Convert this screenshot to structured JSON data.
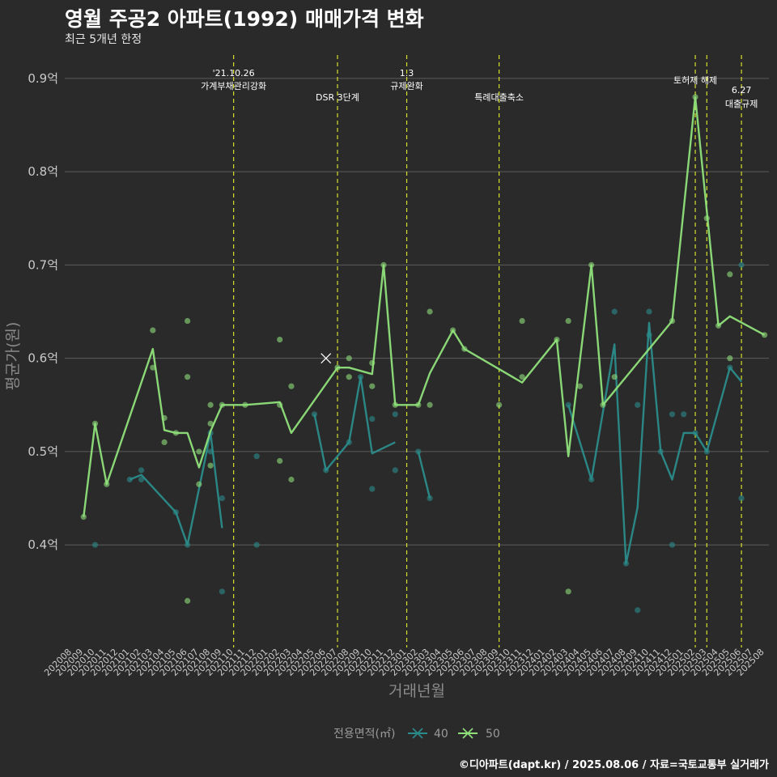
{
  "header": {
    "title": "영월 주공2 아파트(1992) 매매가격 변화",
    "subtitle": "최근 5개년 한정",
    "caption": "©디아파트(dapt.kr) / 2025.08.06 / 자료=국토교통부 실거래가"
  },
  "colors": {
    "background": "#2b2a2b",
    "grid": "#5c5c5c",
    "vline": "#d4e02b",
    "s40": "#2a8c8a",
    "s50": "#8fe07a"
  },
  "chart_data": {
    "type": "line",
    "title": "영월 주공2 아파트(1992) 매매가격 변화",
    "subtitle": "최근 5개년 한정",
    "xlabel": "거래년월",
    "ylabel": "평균가(원)",
    "ylim": [
      0.29,
      0.925
    ],
    "yticks": [
      0.4,
      0.5,
      0.6,
      0.7,
      0.8,
      0.9
    ],
    "ytick_labels": [
      "0.4억",
      "0.5억",
      "0.6억",
      "0.7억",
      "0.8억",
      "0.9억"
    ],
    "grid": true,
    "legend": {
      "title": "전용면적(㎡)",
      "position": "bottom",
      "entries": [
        "40",
        "50"
      ]
    },
    "x_ticks": [
      "202008",
      "202009",
      "202010",
      "202011",
      "202012",
      "202101",
      "202102",
      "202103",
      "202104",
      "202105",
      "202106",
      "202107",
      "202108",
      "202109",
      "202110",
      "202111",
      "202112",
      "202201",
      "202202",
      "202203",
      "202204",
      "202205",
      "202206",
      "202207",
      "202208",
      "202209",
      "202210",
      "202211",
      "202212",
      "202301",
      "202302",
      "202303",
      "202304",
      "202305",
      "202306",
      "202307",
      "202308",
      "202309",
      "202310",
      "202311",
      "202312",
      "202401",
      "202402",
      "202403",
      "202404",
      "202405",
      "202406",
      "202407",
      "202408",
      "202409",
      "202410",
      "202411",
      "202412",
      "202501",
      "202502",
      "202503",
      "202504",
      "202505",
      "202506",
      "202507",
      "202508"
    ],
    "series": [
      {
        "name": "40",
        "line_segments": [
          [
            [
              "202101",
              0.47
            ],
            [
              "202102",
              0.475
            ],
            [
              "202105",
              0.435
            ],
            [
              "202106",
              0.4
            ],
            [
              "202108",
              0.52
            ],
            [
              "202109",
              0.418
            ]
          ],
          [
            [
              "202205",
              0.54
            ],
            [
              "202206",
              0.48
            ],
            [
              "202208",
              0.51
            ],
            [
              "202209",
              0.58
            ],
            [
              "202210",
              0.498
            ],
            [
              "202212",
              0.51
            ]
          ],
          [
            [
              "202302",
              0.5
            ],
            [
              "202303",
              0.45
            ]
          ],
          [
            [
              "202403",
              0.55
            ],
            [
              "202405",
              0.47
            ],
            [
              "202407",
              0.615
            ],
            [
              "202408",
              0.38
            ],
            [
              "202409",
              0.44
            ],
            [
              "202410",
              0.638
            ],
            [
              "202411",
              0.5
            ],
            [
              "202412",
              0.47
            ],
            [
              "202501",
              0.52
            ],
            [
              "202502",
              0.52
            ],
            [
              "202503",
              0.5
            ],
            [
              "202505",
              0.59
            ],
            [
              "202506",
              0.575
            ]
          ]
        ],
        "points": [
          [
            "202010",
            0.4
          ],
          [
            "202101",
            0.47
          ],
          [
            "202102",
            0.48
          ],
          [
            "202102",
            0.47
          ],
          [
            "202105",
            0.435
          ],
          [
            "202106",
            0.4
          ],
          [
            "202108",
            0.5
          ],
          [
            "202108",
            0.52
          ],
          [
            "202109",
            0.45
          ],
          [
            "202109",
            0.35
          ],
          [
            "202112",
            0.495
          ],
          [
            "202112",
            0.4
          ],
          [
            "202205",
            0.54
          ],
          [
            "202206",
            0.48
          ],
          [
            "202208",
            0.51
          ],
          [
            "202209",
            0.58
          ],
          [
            "202210",
            0.535
          ],
          [
            "202210",
            0.46
          ],
          [
            "202212",
            0.54
          ],
          [
            "202212",
            0.48
          ],
          [
            "202302",
            0.5
          ],
          [
            "202303",
            0.45
          ],
          [
            "202403",
            0.55
          ],
          [
            "202405",
            0.47
          ],
          [
            "202407",
            0.65
          ],
          [
            "202408",
            0.38
          ],
          [
            "202409",
            0.33
          ],
          [
            "202409",
            0.55
          ],
          [
            "202410",
            0.65
          ],
          [
            "202410",
            0.625
          ],
          [
            "202411",
            0.5
          ],
          [
            "202412",
            0.4
          ],
          [
            "202412",
            0.54
          ],
          [
            "202501",
            0.54
          ],
          [
            "202502",
            0.52
          ],
          [
            "202503",
            0.5
          ],
          [
            "202505",
            0.59
          ],
          [
            "202506",
            0.7
          ],
          [
            "202506",
            0.45
          ]
        ]
      },
      {
        "name": "50",
        "line_segments": [
          [
            [
              "202009",
              0.43
            ],
            [
              "202010",
              0.53
            ],
            [
              "202011",
              0.465
            ],
            [
              "202103",
              0.61
            ],
            [
              "202104",
              0.523
            ],
            [
              "202105",
              0.52
            ],
            [
              "202106",
              0.52
            ],
            [
              "202107",
              0.483
            ],
            [
              "202108",
              0.522
            ],
            [
              "202109",
              0.55
            ],
            [
              "202110",
              0.55
            ],
            [
              "202111",
              0.55
            ],
            [
              "202202",
              0.553
            ],
            [
              "202203",
              0.52
            ],
            [
              "202207",
              0.59
            ],
            [
              "202208",
              0.59
            ],
            [
              "202210",
              0.583
            ],
            [
              "202211",
              0.7
            ],
            [
              "202212",
              0.55
            ],
            [
              "202302",
              0.55
            ],
            [
              "202303",
              0.584
            ],
            [
              "202305",
              0.63
            ],
            [
              "202306",
              0.61
            ],
            [
              "202311",
              0.574
            ],
            [
              "202402",
              0.62
            ],
            [
              "202403",
              0.495
            ],
            [
              "202405",
              0.7
            ],
            [
              "202406",
              0.55
            ],
            [
              "202412",
              0.64
            ],
            [
              "202502",
              0.88
            ],
            [
              "202504",
              0.635
            ],
            [
              "202505",
              0.645
            ],
            [
              "202508",
              0.625
            ]
          ]
        ],
        "points": [
          [
            "202009",
            0.43
          ],
          [
            "202010",
            0.53
          ],
          [
            "202011",
            0.465
          ],
          [
            "202103",
            0.63
          ],
          [
            "202103",
            0.59
          ],
          [
            "202104",
            0.536
          ],
          [
            "202104",
            0.51
          ],
          [
            "202105",
            0.52
          ],
          [
            "202106",
            0.64
          ],
          [
            "202106",
            0.58
          ],
          [
            "202106",
            0.34
          ],
          [
            "202107",
            0.5
          ],
          [
            "202107",
            0.465
          ],
          [
            "202108",
            0.55
          ],
          [
            "202108",
            0.53
          ],
          [
            "202108",
            0.485
          ],
          [
            "202109",
            0.55
          ],
          [
            "202111",
            0.55
          ],
          [
            "202202",
            0.62
          ],
          [
            "202202",
            0.55
          ],
          [
            "202202",
            0.49
          ],
          [
            "202203",
            0.57
          ],
          [
            "202203",
            0.47
          ],
          [
            "202207",
            0.59
          ],
          [
            "202208",
            0.6
          ],
          [
            "202208",
            0.58
          ],
          [
            "202210",
            0.595
          ],
          [
            "202210",
            0.57
          ],
          [
            "202211",
            0.7
          ],
          [
            "202212",
            0.55
          ],
          [
            "202302",
            0.55
          ],
          [
            "202303",
            0.65
          ],
          [
            "202303",
            0.55
          ],
          [
            "202305",
            0.63
          ],
          [
            "202306",
            0.61
          ],
          [
            "202309",
            0.55
          ],
          [
            "202311",
            0.64
          ],
          [
            "202311",
            0.58
          ],
          [
            "202402",
            0.62
          ],
          [
            "202403",
            0.64
          ],
          [
            "202403",
            0.35
          ],
          [
            "202404",
            0.57
          ],
          [
            "202405",
            0.7
          ],
          [
            "202406",
            0.55
          ],
          [
            "202407",
            0.58
          ],
          [
            "202412",
            0.64
          ],
          [
            "202502",
            0.88
          ],
          [
            "202503",
            0.75
          ],
          [
            "202504",
            0.635
          ],
          [
            "202505",
            0.69
          ],
          [
            "202505",
            0.6
          ],
          [
            "202508",
            0.625
          ]
        ]
      }
    ],
    "highlight_marker": {
      "series": "50",
      "x": "202206",
      "y": 0.6
    },
    "events": [
      {
        "x": "202110",
        "labels": [
          "'21.10.26",
          "가계부채관리강화"
        ]
      },
      {
        "x": "202207",
        "labels": [
          "DSR 3단계"
        ]
      },
      {
        "x": "202301",
        "labels": [
          "1.3",
          "규제완화"
        ]
      },
      {
        "x": "202309",
        "labels": [
          "특례대출축소"
        ]
      },
      {
        "x": "202502",
        "labels": [
          "토허제 해제"
        ]
      },
      {
        "x": "202503",
        "labels": []
      },
      {
        "x": "202506",
        "labels": [
          "6.27",
          "대출규제"
        ]
      }
    ]
  }
}
